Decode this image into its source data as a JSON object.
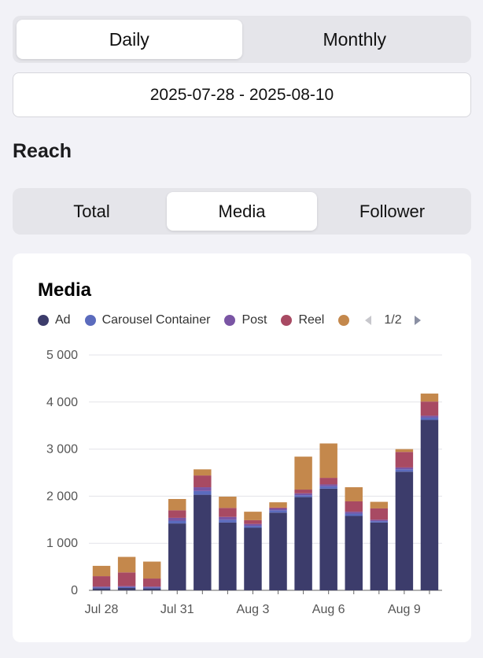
{
  "period_toggle": {
    "options": [
      "Daily",
      "Monthly"
    ],
    "selected": "Daily"
  },
  "date_range": "2025-07-28 - 2025-08-10",
  "section_title": "Reach",
  "reach_toggle": {
    "options": [
      "Total",
      "Media",
      "Follower"
    ],
    "selected": "Media"
  },
  "legend_pager": "1/2",
  "colors": {
    "Ad": "#3c3c6b",
    "Carousel Container": "#5b6bbd",
    "Post": "#7a55a4",
    "Reel": "#a84a63",
    "Story": "#c4884c"
  },
  "chart_data": {
    "type": "bar",
    "stacked": true,
    "title": "Media",
    "categories": [
      "Jul 28",
      "Jul 29",
      "Jul 30",
      "Jul 31",
      "Aug 1",
      "Aug 2",
      "Aug 3",
      "Aug 4",
      "Aug 5",
      "Aug 6",
      "Aug 7",
      "Aug 8",
      "Aug 9",
      "Aug 10"
    ],
    "x_tick_labels": [
      "Jul 28",
      "Jul 31",
      "Aug 3",
      "Aug 6",
      "Aug 9"
    ],
    "y_tick_labels": [
      "0",
      "1 000",
      "2 000",
      "3 000",
      "4 000",
      "5 000"
    ],
    "ylim": [
      0,
      5000
    ],
    "grid": true,
    "legend_position": "top",
    "series": [
      {
        "name": "Ad",
        "values": [
          40,
          50,
          40,
          1420,
          2030,
          1440,
          1330,
          1650,
          1980,
          2160,
          1580,
          1440,
          2520,
          3620
        ]
      },
      {
        "name": "Carousel Container",
        "values": [
          20,
          20,
          20,
          60,
          80,
          60,
          40,
          50,
          40,
          50,
          50,
          30,
          50,
          50
        ]
      },
      {
        "name": "Post",
        "values": [
          20,
          20,
          20,
          60,
          80,
          60,
          40,
          40,
          40,
          40,
          40,
          30,
          40,
          40
        ]
      },
      {
        "name": "Reel",
        "values": [
          220,
          290,
          170,
          160,
          250,
          190,
          80,
          20,
          80,
          140,
          220,
          240,
          330,
          300
        ]
      },
      {
        "name": "",
        "values": [
          220,
          330,
          360,
          240,
          130,
          240,
          180,
          110,
          700,
          730,
          300,
          140,
          60,
          170
        ]
      }
    ],
    "legend_visible": [
      "Ad",
      "Carousel Container",
      "Post",
      "Reel",
      ""
    ]
  }
}
